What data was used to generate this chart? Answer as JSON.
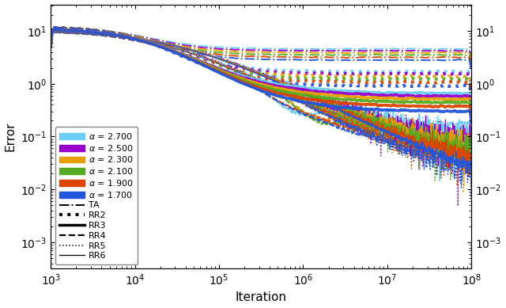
{
  "colors": {
    "alpha_2700": "#6ACEF5",
    "alpha_2500": "#9900CC",
    "alpha_2300": "#E8A000",
    "alpha_2100": "#55AA22",
    "alpha_1900": "#DD4400",
    "alpha_1700": "#2255DD"
  },
  "alpha_labels": [
    "2.700",
    "2.500",
    "2.300",
    "2.100",
    "1.900",
    "1.700"
  ],
  "alpha_values": [
    2.7,
    2.5,
    2.3,
    2.1,
    1.9,
    1.7
  ],
  "methods_order": [
    "TA",
    "RR2",
    "RR3",
    "RR4",
    "RR5",
    "RR6"
  ],
  "linestyles": {
    "TA": {
      "ls": "-.",
      "lw": 1.4
    },
    "RR2": {
      "ls": ":",
      "lw": 2.8
    },
    "RR3": {
      "ls": "-",
      "lw": 2.5
    },
    "RR4": {
      "ls": "--",
      "lw": 1.6
    },
    "RR5": {
      "ls": ":",
      "lw": 1.1
    },
    "RR6": {
      "ls": "-",
      "lw": 0.9
    }
  },
  "xlabel": "Iteration",
  "ylabel": "Error",
  "figsize": [
    6.4,
    3.89
  ],
  "dpi": 100
}
